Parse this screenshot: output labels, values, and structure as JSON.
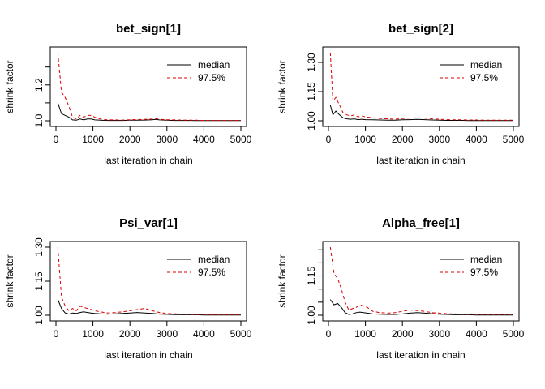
{
  "chart_data": [
    {
      "type": "line",
      "title": "bet_sign[1]",
      "xlabel": "last iteration in chain",
      "ylabel": "shrink factor",
      "xlim": [
        0,
        5000
      ],
      "ylim": [
        1.0,
        1.38
      ],
      "xticks": [
        0,
        1000,
        2000,
        3000,
        4000,
        5000
      ],
      "yticks": [
        1.0,
        1.1,
        1.2,
        1.3
      ],
      "ytick_labels": [
        "1.0",
        "",
        "1.2",
        ""
      ],
      "legend": [
        "median",
        "97.5%"
      ],
      "series": [
        {
          "name": "median",
          "color": "#000000",
          "dash": "solid",
          "x": [
            50,
            150,
            250,
            350,
            450,
            550,
            650,
            750,
            850,
            950,
            1050,
            1200,
            1400,
            1600,
            1800,
            2000,
            2200,
            2400,
            2600,
            2700,
            2800,
            3000,
            3200,
            3400,
            3600,
            3800,
            4000,
            4200,
            4400,
            4600,
            4800,
            5000
          ],
          "y": [
            1.1,
            1.04,
            1.03,
            1.02,
            1.005,
            1.003,
            1.01,
            1.005,
            1.01,
            1.01,
            1.005,
            1.003,
            1.002,
            1.002,
            1.002,
            1.003,
            1.003,
            1.004,
            1.006,
            1.008,
            1.005,
            1.003,
            1.002,
            1.002,
            1.002,
            1.001,
            1.001,
            1.001,
            1.001,
            1.001,
            1.001,
            1.001
          ]
        },
        {
          "name": "97.5%",
          "color": "#dd0000",
          "dash": "dashed",
          "x": [
            50,
            150,
            250,
            350,
            450,
            550,
            650,
            750,
            850,
            950,
            1050,
            1200,
            1400,
            1600,
            1800,
            2000,
            2200,
            2400,
            2600,
            2700,
            2800,
            3000,
            3200,
            3400,
            3600,
            3800,
            4000,
            4200,
            4400,
            4600,
            4800,
            5000
          ],
          "y": [
            1.38,
            1.16,
            1.13,
            1.08,
            1.02,
            1.01,
            1.03,
            1.02,
            1.03,
            1.03,
            1.02,
            1.01,
            1.005,
            1.005,
            1.004,
            1.006,
            1.007,
            1.008,
            1.01,
            1.012,
            1.008,
            1.006,
            1.005,
            1.004,
            1.003,
            1.003,
            1.002,
            1.002,
            1.002,
            1.002,
            1.002,
            1.002
          ]
        }
      ]
    },
    {
      "type": "line",
      "title": "bet_sign[2]",
      "xlabel": "last iteration in chain",
      "ylabel": "shrink factor",
      "xlim": [
        0,
        5000
      ],
      "ylim": [
        1.0,
        1.35
      ],
      "xticks": [
        0,
        1000,
        2000,
        3000,
        4000,
        5000
      ],
      "yticks": [
        1.0,
        1.15,
        1.3
      ],
      "ytick_labels": [
        "1.00",
        "1.15",
        "1.30"
      ],
      "legend": [
        "median",
        "97.5%"
      ],
      "series": [
        {
          "name": "median",
          "color": "#000000",
          "dash": "solid",
          "x": [
            50,
            120,
            200,
            300,
            400,
            500,
            600,
            700,
            800,
            900,
            1000,
            1200,
            1400,
            1600,
            1800,
            2000,
            2200,
            2400,
            2600,
            2800,
            3000,
            3200,
            3400,
            3600,
            3800,
            4000,
            4200,
            4400,
            4600,
            4800,
            5000
          ],
          "y": [
            1.08,
            1.03,
            1.05,
            1.03,
            1.015,
            1.01,
            1.008,
            1.01,
            1.006,
            1.008,
            1.006,
            1.005,
            1.004,
            1.003,
            1.003,
            1.005,
            1.006,
            1.007,
            1.006,
            1.004,
            1.003,
            1.002,
            1.002,
            1.002,
            1.001,
            1.001,
            1.001,
            1.001,
            1.001,
            1.001,
            1.001
          ]
        },
        {
          "name": "97.5%",
          "color": "#dd0000",
          "dash": "dashed",
          "x": [
            50,
            120,
            200,
            300,
            400,
            500,
            600,
            700,
            800,
            900,
            1000,
            1200,
            1400,
            1600,
            1800,
            2000,
            2200,
            2400,
            2600,
            2800,
            3000,
            3200,
            3400,
            3600,
            3800,
            4000,
            4200,
            4400,
            4600,
            4800,
            5000
          ],
          "y": [
            1.35,
            1.1,
            1.12,
            1.08,
            1.04,
            1.03,
            1.025,
            1.03,
            1.02,
            1.025,
            1.02,
            1.015,
            1.012,
            1.01,
            1.008,
            1.012,
            1.014,
            1.015,
            1.014,
            1.01,
            1.008,
            1.006,
            1.005,
            1.005,
            1.004,
            1.004,
            1.003,
            1.003,
            1.003,
            1.003,
            1.003
          ]
        }
      ]
    },
    {
      "type": "line",
      "title": "Psi_var[1]",
      "xlabel": "last iteration in chain",
      "ylabel": "shrink factor",
      "xlim": [
        0,
        5000
      ],
      "ylim": [
        1.0,
        1.3
      ],
      "xticks": [
        0,
        1000,
        2000,
        3000,
        4000,
        5000
      ],
      "yticks": [
        1.0,
        1.15,
        1.3
      ],
      "ytick_labels": [
        "1.00",
        "1.15",
        "1.30"
      ],
      "legend": [
        "median",
        "97.5%"
      ],
      "series": [
        {
          "name": "median",
          "color": "#000000",
          "dash": "solid",
          "x": [
            50,
            150,
            250,
            350,
            450,
            550,
            650,
            750,
            850,
            950,
            1050,
            1200,
            1400,
            1600,
            1800,
            2000,
            2200,
            2400,
            2600,
            2800,
            3000,
            3200,
            3400,
            3600,
            3800,
            4000,
            4200,
            4400,
            4600,
            4800,
            5000
          ],
          "y": [
            1.07,
            1.03,
            1.01,
            1.005,
            1.01,
            1.008,
            1.012,
            1.015,
            1.012,
            1.01,
            1.008,
            1.006,
            1.005,
            1.006,
            1.008,
            1.01,
            1.012,
            1.01,
            1.008,
            1.005,
            1.004,
            1.003,
            1.002,
            1.002,
            1.002,
            1.001,
            1.001,
            1.001,
            1.001,
            1.001,
            1.001
          ]
        },
        {
          "name": "97.5%",
          "color": "#dd0000",
          "dash": "dashed",
          "x": [
            50,
            150,
            250,
            350,
            450,
            550,
            650,
            750,
            850,
            950,
            1050,
            1200,
            1400,
            1600,
            1800,
            2000,
            2200,
            2400,
            2600,
            2800,
            3000,
            3200,
            3400,
            3600,
            3800,
            4000,
            4200,
            4400,
            4600,
            4800,
            5000
          ],
          "y": [
            1.3,
            1.08,
            1.04,
            1.02,
            1.03,
            1.02,
            1.04,
            1.035,
            1.03,
            1.025,
            1.02,
            1.015,
            1.01,
            1.012,
            1.015,
            1.02,
            1.025,
            1.03,
            1.02,
            1.012,
            1.008,
            1.006,
            1.005,
            1.004,
            1.004,
            1.003,
            1.003,
            1.003,
            1.003,
            1.003,
            1.003
          ]
        }
      ]
    },
    {
      "type": "line",
      "title": "Alpha_free[1]",
      "xlabel": "last iteration in chain",
      "ylabel": "shrink factor",
      "xlim": [
        0,
        5000
      ],
      "ylim": [
        1.0,
        1.26
      ],
      "xticks": [
        0,
        1000,
        2000,
        3000,
        4000,
        5000
      ],
      "yticks": [
        1.0,
        1.05,
        1.1,
        1.15,
        1.2,
        1.25
      ],
      "ytick_labels": [
        "1.00",
        "",
        "",
        "1.15",
        "",
        ""
      ],
      "legend": [
        "median",
        "97.5%"
      ],
      "series": [
        {
          "name": "median",
          "color": "#000000",
          "dash": "solid",
          "x": [
            50,
            150,
            250,
            350,
            450,
            550,
            650,
            750,
            850,
            950,
            1050,
            1200,
            1400,
            1600,
            1800,
            2000,
            2200,
            2400,
            2600,
            2800,
            3000,
            3200,
            3400,
            3600,
            3800,
            4000,
            4200,
            4400,
            4600,
            4800,
            5000
          ],
          "y": [
            1.06,
            1.04,
            1.045,
            1.03,
            1.01,
            1.003,
            1.005,
            1.01,
            1.012,
            1.01,
            1.008,
            1.005,
            1.004,
            1.003,
            1.003,
            1.005,
            1.008,
            1.01,
            1.008,
            1.006,
            1.004,
            1.003,
            1.002,
            1.002,
            1.002,
            1.001,
            1.001,
            1.001,
            1.001,
            1.001,
            1.001
          ]
        },
        {
          "name": "97.5%",
          "color": "#dd0000",
          "dash": "dashed",
          "x": [
            50,
            150,
            250,
            350,
            450,
            550,
            650,
            750,
            850,
            950,
            1050,
            1200,
            1400,
            1600,
            1800,
            2000,
            2200,
            2400,
            2600,
            2800,
            3000,
            3200,
            3400,
            3600,
            3800,
            4000,
            4200,
            4400,
            4600,
            4800,
            5000
          ],
          "y": [
            1.26,
            1.16,
            1.14,
            1.1,
            1.05,
            1.02,
            1.025,
            1.03,
            1.04,
            1.035,
            1.03,
            1.015,
            1.01,
            1.008,
            1.01,
            1.015,
            1.02,
            1.018,
            1.015,
            1.01,
            1.008,
            1.006,
            1.005,
            1.004,
            1.004,
            1.003,
            1.003,
            1.003,
            1.003,
            1.003,
            1.003
          ]
        }
      ]
    }
  ]
}
